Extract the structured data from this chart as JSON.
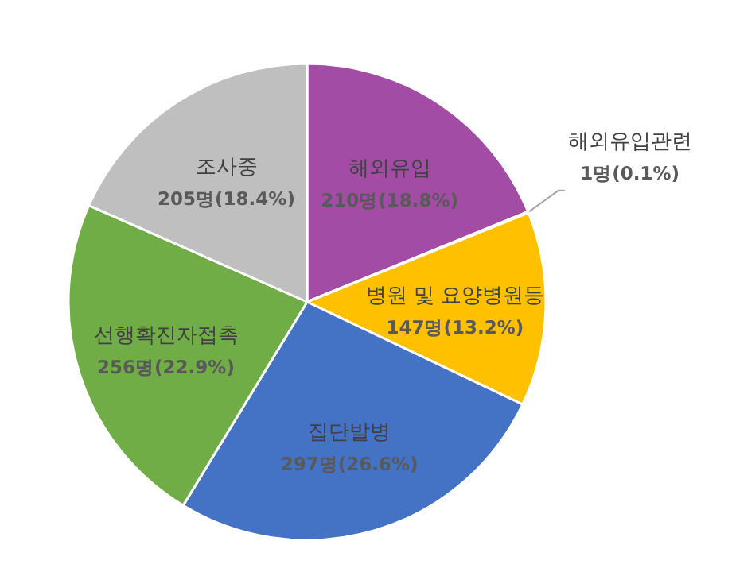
{
  "chart_data": {
    "type": "pie",
    "categories": [
      "해외유입",
      "해외유입관련",
      "병원 및 요양병원등",
      "집단발병",
      "선행확진자접촉",
      "조사중"
    ],
    "values": [
      210,
      1,
      147,
      297,
      256,
      205
    ],
    "colors": [
      "#a24ca6",
      "#a5a5a5",
      "#ffc000",
      "#4472c4",
      "#70ad47",
      "#bfbfbf"
    ],
    "value_labels": [
      "210명(18.8%)",
      "1명(0.1%)",
      "147명(13.2%)",
      "297명(26.6%)",
      "256명(22.9%)",
      "205명(18.4%)"
    ]
  }
}
